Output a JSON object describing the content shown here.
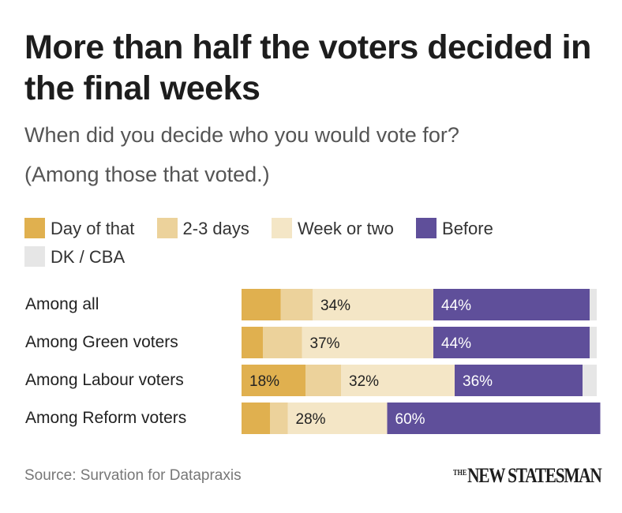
{
  "title": "More than half the voters decided in the final weeks",
  "subtitle_line1": "When did you decide who you would vote for?",
  "subtitle_line2": "(Among those that voted.)",
  "source": "Source: Survation for Datapraxis",
  "logo": {
    "small": "THE",
    "main": "NEW STATESMAN"
  },
  "colors": {
    "day_of": "#e0b04f",
    "two_three_days": "#ecd29b",
    "week_or_two": "#f4e6c6",
    "before": "#5f4f9a",
    "dk_cba": "#e6e6e6"
  },
  "chart_data": {
    "type": "bar",
    "orientation": "horizontal",
    "stacked": true,
    "normalized_to": 100,
    "title": "More than half the voters decided in the final weeks",
    "categories": [
      "Among all",
      "Among Green voters",
      "Among Labour voters",
      "Among Reform voters"
    ],
    "series": [
      {
        "name": "Day of that",
        "legend_label": "Day of that",
        "color": "#e0b04f",
        "values": [
          11,
          6,
          18,
          8
        ]
      },
      {
        "name": "2-3 days",
        "legend_label": "2-3 days",
        "color": "#ecd29b",
        "values": [
          9,
          11,
          10,
          5
        ]
      },
      {
        "name": "Week or two",
        "legend_label": "Week or two",
        "color": "#f4e6c6",
        "values": [
          34,
          37,
          32,
          28
        ]
      },
      {
        "name": "Before",
        "legend_label": "Before",
        "color": "#5f4f9a",
        "values": [
          44,
          44,
          36,
          60
        ]
      },
      {
        "name": "DK / CBA",
        "legend_label": "DK / CBA",
        "color": "#e6e6e6",
        "values": [
          2,
          2,
          4,
          0
        ]
      }
    ],
    "data_labels": [
      [
        null,
        null,
        "34%",
        "44%",
        null
      ],
      [
        null,
        null,
        "37%",
        "44%",
        null
      ],
      [
        "18%",
        null,
        "32%",
        "36%",
        null
      ],
      [
        null,
        null,
        "28%",
        "60%",
        null
      ]
    ],
    "legend_position": "top"
  }
}
